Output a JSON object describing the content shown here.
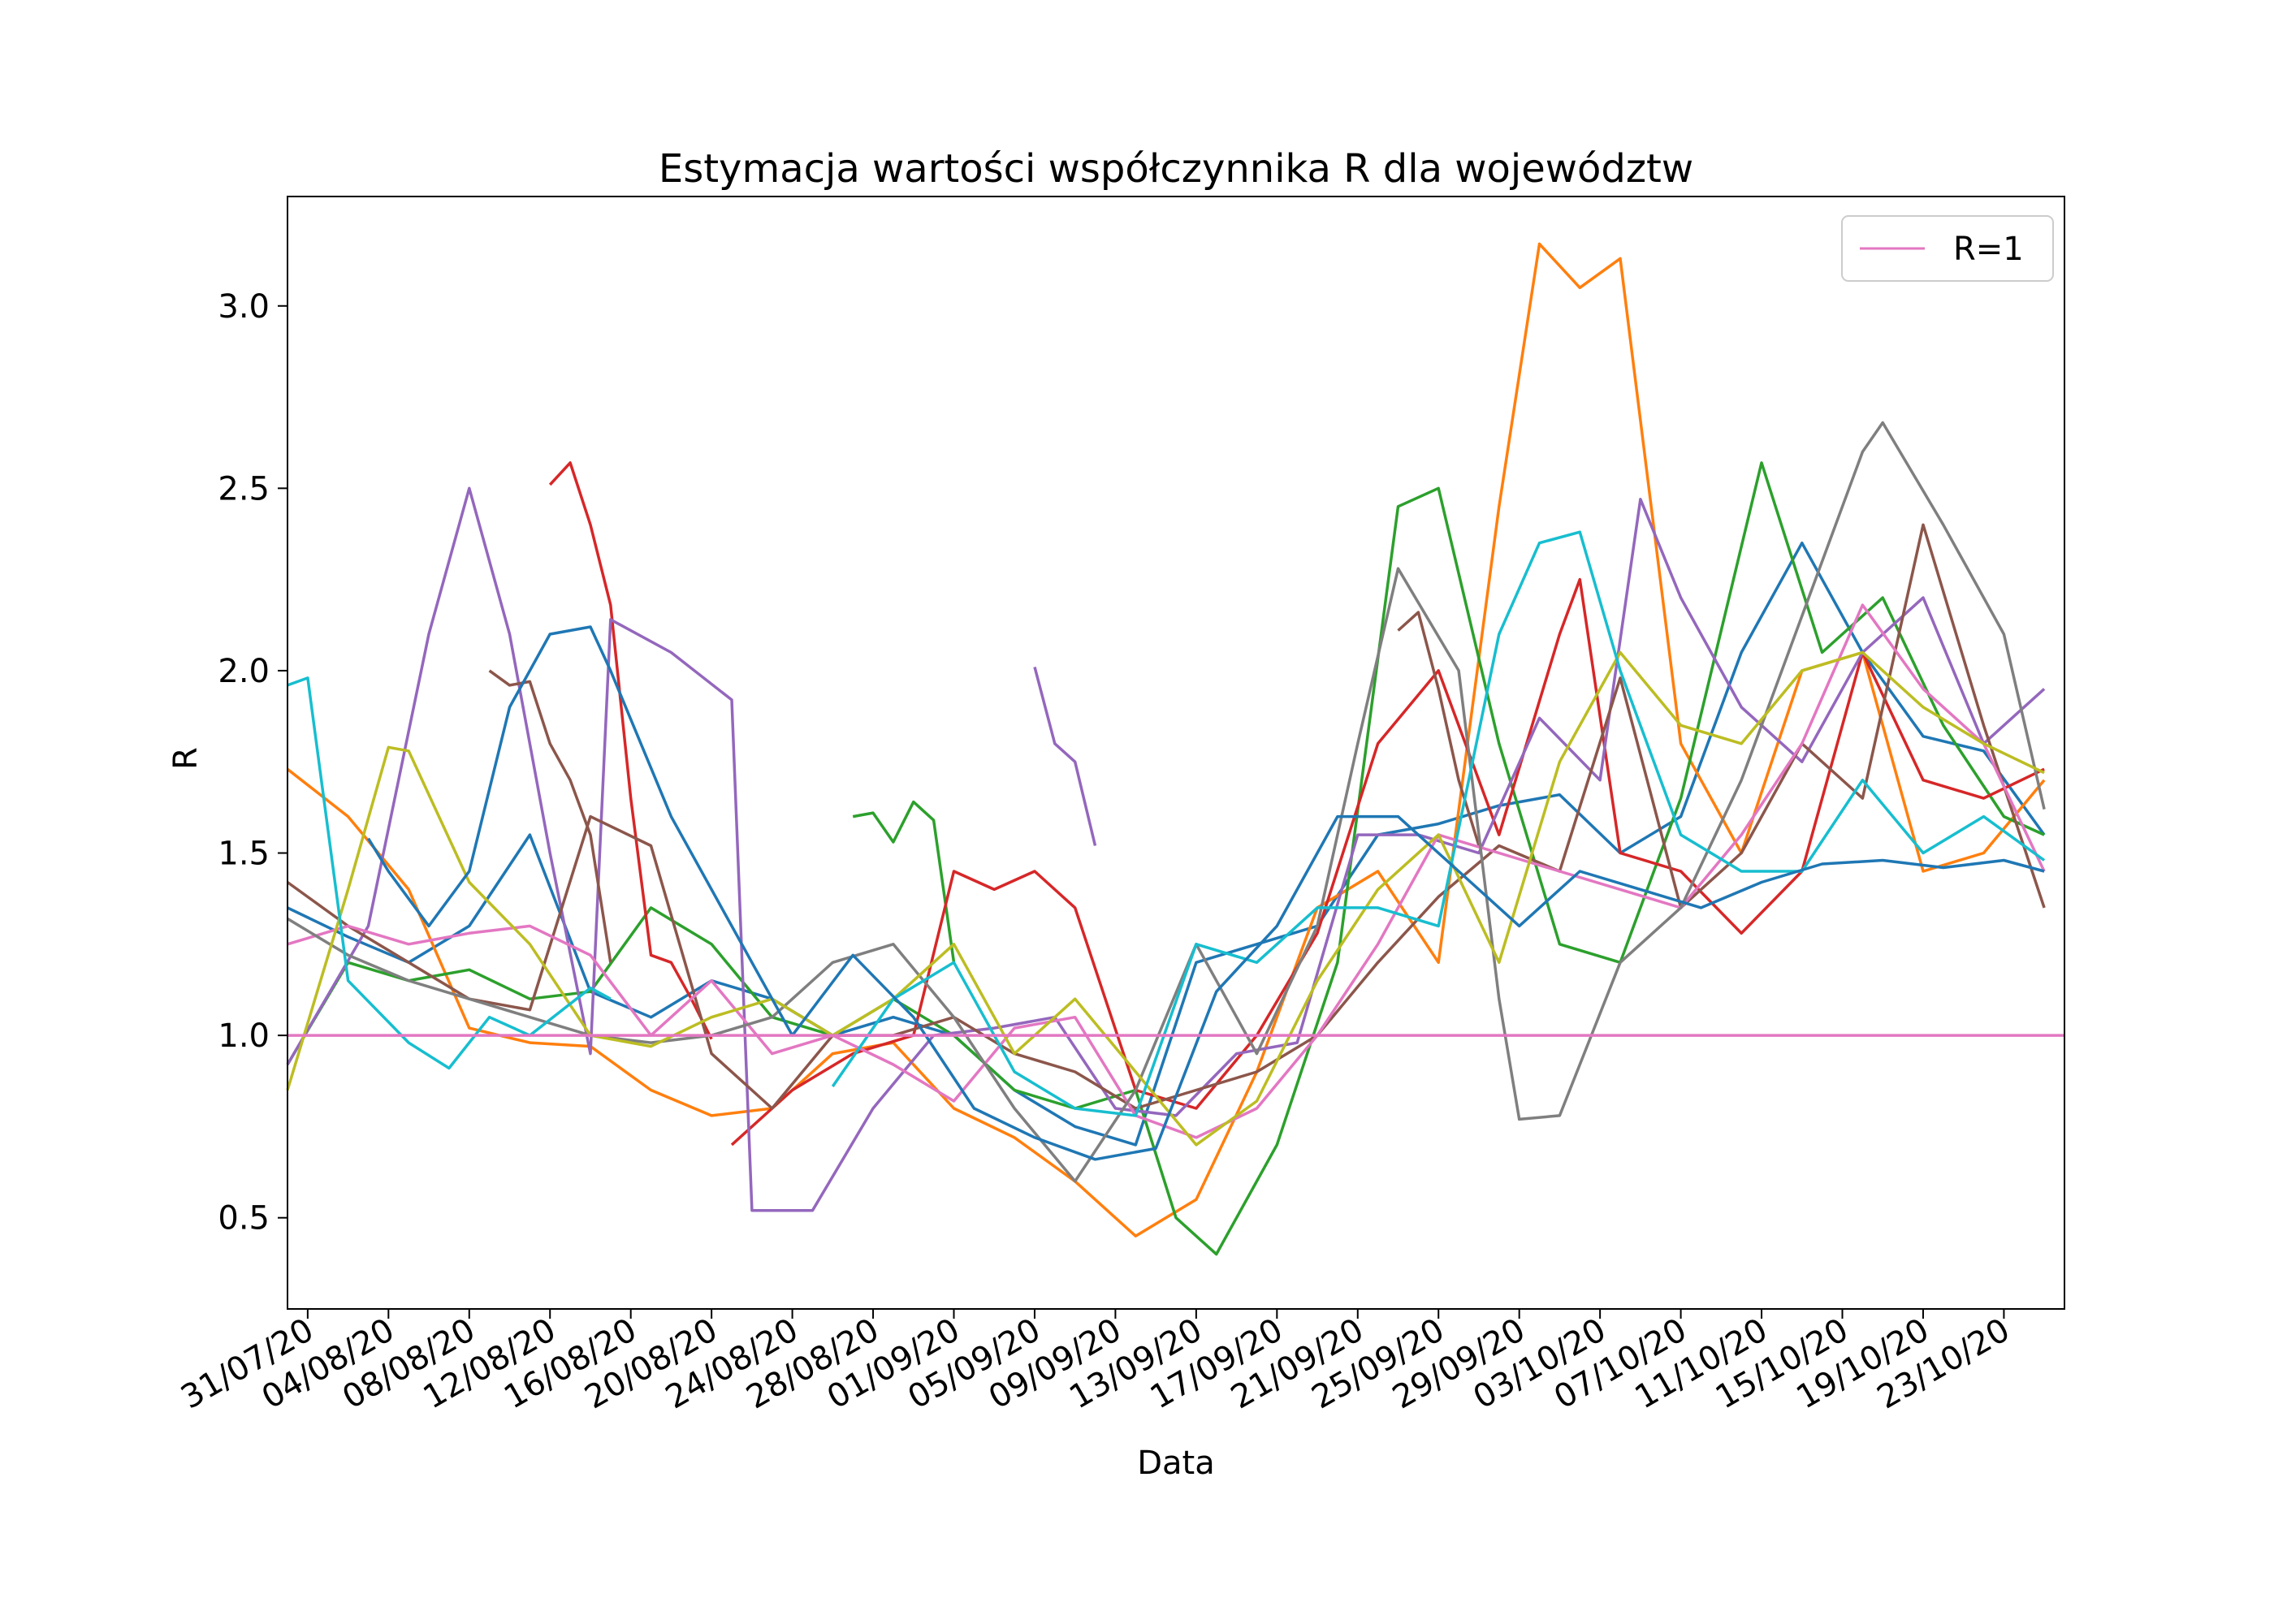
{
  "chart_data": {
    "type": "line",
    "title": "Estymacja wartości współczynnika R dla województw",
    "xlabel": "Data",
    "ylabel": "R",
    "x_axis": "date",
    "xlim": [
      "2020-07-30",
      "2020-10-26"
    ],
    "ylim": [
      0.25,
      3.3
    ],
    "x_ticks": [
      "31/07/20",
      "04/08/20",
      "08/08/20",
      "12/08/20",
      "16/08/20",
      "20/08/20",
      "24/08/20",
      "28/08/20",
      "01/09/20",
      "05/09/20",
      "09/09/20",
      "13/09/20",
      "17/09/20",
      "21/09/20",
      "25/09/20",
      "29/09/20",
      "03/10/20",
      "07/10/20",
      "11/10/20",
      "15/10/20",
      "19/10/20",
      "23/10/20"
    ],
    "y_ticks": [
      "0.5",
      "1.0",
      "1.5",
      "2.0",
      "2.5",
      "3.0"
    ],
    "grid": false,
    "legend": {
      "placement": "top-right",
      "entries": [
        "R=1"
      ]
    },
    "reference_line": {
      "label": "R=1",
      "y": 1.0,
      "color": "#e377c2"
    },
    "series": [
      {
        "color": "#1f77b4",
        "x": [
          "2020-07-30",
          "2020-08-02",
          "2020-08-05",
          "2020-08-08",
          "2020-08-11",
          "2020-08-14",
          "2020-08-17",
          "2020-08-20",
          "2020-08-23",
          "2020-08-26",
          "2020-08-29",
          "2020-09-01",
          "2020-09-04",
          "2020-09-07",
          "2020-09-10",
          "2020-09-13",
          "2020-09-16",
          "2020-09-19",
          "2020-09-22",
          "2020-09-25",
          "2020-09-28",
          "2020-10-01",
          "2020-10-04",
          "2020-10-07",
          "2020-10-10",
          "2020-10-13",
          "2020-10-16",
          "2020-10-19",
          "2020-10-22",
          "2020-10-25"
        ],
        "y": [
          1.35,
          1.27,
          1.2,
          1.3,
          1.55,
          1.12,
          1.05,
          1.15,
          1.1,
          1.0,
          1.05,
          1.0,
          0.85,
          0.75,
          0.7,
          1.2,
          1.25,
          1.3,
          1.55,
          1.58,
          1.63,
          1.66,
          1.5,
          1.6,
          2.05,
          2.35,
          2.05,
          1.82,
          1.78,
          1.55
        ]
      },
      {
        "color": "#ff7f0e",
        "x": [
          "2020-07-30",
          "2020-08-02",
          "2020-08-05",
          "2020-08-08",
          "2020-08-11",
          "2020-08-14",
          "2020-08-17",
          "2020-08-20",
          "2020-08-23",
          "2020-08-26",
          "2020-08-29",
          "2020-09-01",
          "2020-09-04",
          "2020-09-07",
          "2020-09-10",
          "2020-09-13",
          "2020-09-16",
          "2020-09-19",
          "2020-09-22",
          "2020-09-25",
          "2020-09-28",
          "2020-09-30",
          "2020-10-02",
          "2020-10-04",
          "2020-10-07",
          "2020-10-10",
          "2020-10-13",
          "2020-10-16",
          "2020-10-19",
          "2020-10-22",
          "2020-10-25"
        ],
        "y": [
          1.73,
          1.6,
          1.4,
          1.02,
          0.98,
          0.97,
          0.85,
          0.78,
          0.8,
          0.95,
          0.98,
          0.8,
          0.72,
          0.6,
          0.45,
          0.55,
          0.9,
          1.35,
          1.45,
          1.2,
          2.45,
          3.17,
          3.05,
          3.13,
          1.8,
          1.5,
          2.0,
          2.05,
          1.45,
          1.5,
          1.7
        ]
      },
      {
        "color": "#2ca02c",
        "x": [
          "2020-07-30",
          "2020-08-02",
          "2020-08-05",
          "2020-08-08",
          "2020-08-11",
          "2020-08-14",
          "2020-08-17",
          "2020-08-20",
          "2020-08-23",
          "2020-08-26",
          "2020-08-29",
          "2020-09-01",
          "2020-09-04",
          "2020-09-07",
          "2020-09-10",
          "2020-09-12",
          "2020-09-14",
          "2020-09-17",
          "2020-09-20",
          "2020-09-23",
          "2020-09-25",
          "2020-09-28",
          "2020-10-01",
          "2020-10-04",
          "2020-10-07",
          "2020-10-11",
          "2020-10-14",
          "2020-10-17",
          "2020-10-20",
          "2020-10-23",
          "2020-10-25"
        ],
        "y": [
          0.92,
          1.2,
          1.15,
          1.18,
          1.1,
          1.12,
          1.35,
          1.25,
          1.05,
          1.0,
          1.1,
          1.0,
          0.85,
          0.8,
          0.85,
          0.5,
          0.4,
          0.7,
          1.2,
          2.45,
          2.5,
          1.8,
          1.25,
          1.2,
          1.65,
          2.57,
          2.05,
          2.2,
          1.85,
          1.6,
          1.55
        ]
      },
      {
        "color": "#2ca02c",
        "x": [
          "2020-08-27",
          "2020-08-28",
          "2020-08-29",
          "2020-08-30",
          "2020-08-31",
          "2020-09-01"
        ],
        "y": [
          1.6,
          1.61,
          1.53,
          1.64,
          1.59,
          1.2
        ]
      },
      {
        "color": "#d62728",
        "x": [
          "2020-08-12",
          "2020-08-13",
          "2020-08-14",
          "2020-08-15",
          "2020-08-16",
          "2020-08-17",
          "2020-08-18",
          "2020-08-19",
          "2020-08-20"
        ],
        "y": [
          2.51,
          2.57,
          2.4,
          2.18,
          1.65,
          1.22,
          1.2,
          1.1,
          0.99
        ]
      },
      {
        "color": "#d62728",
        "x": [
          "2020-08-21",
          "2020-08-24",
          "2020-08-27",
          "2020-08-30",
          "2020-09-01",
          "2020-09-03",
          "2020-09-05",
          "2020-09-07",
          "2020-09-10",
          "2020-09-13",
          "2020-09-16",
          "2020-09-19",
          "2020-09-22",
          "2020-09-25",
          "2020-09-28",
          "2020-10-01",
          "2020-10-02",
          "2020-10-04",
          "2020-10-07",
          "2020-10-10",
          "2020-10-13",
          "2020-10-16",
          "2020-10-19",
          "2020-10-22",
          "2020-10-25"
        ],
        "y": [
          0.7,
          0.85,
          0.95,
          1.0,
          1.45,
          1.4,
          1.45,
          1.35,
          0.85,
          0.8,
          1.0,
          1.28,
          1.8,
          2.0,
          1.55,
          2.1,
          2.25,
          1.5,
          1.45,
          1.28,
          1.45,
          2.05,
          1.7,
          1.65,
          1.73
        ]
      },
      {
        "color": "#9467bd",
        "x": [
          "2020-07-30",
          "2020-08-03",
          "2020-08-06",
          "2020-08-08",
          "2020-08-10",
          "2020-08-12",
          "2020-08-14",
          "2020-08-15",
          "2020-08-18",
          "2020-08-21",
          "2020-08-22",
          "2020-08-25",
          "2020-08-28",
          "2020-08-31",
          "2020-09-03",
          "2020-09-06",
          "2020-09-09",
          "2020-09-12",
          "2020-09-15",
          "2020-09-18",
          "2020-09-21",
          "2020-09-24",
          "2020-09-27",
          "2020-09-30",
          "2020-10-03",
          "2020-10-05",
          "2020-10-07",
          "2020-10-10",
          "2020-10-13",
          "2020-10-16",
          "2020-10-19",
          "2020-10-22",
          "2020-10-25"
        ],
        "y": [
          0.92,
          1.3,
          2.1,
          2.5,
          2.1,
          1.5,
          0.95,
          2.14,
          2.05,
          1.92,
          0.52,
          0.52,
          0.8,
          1.0,
          1.02,
          1.05,
          0.8,
          0.78,
          0.95,
          0.98,
          1.55,
          1.55,
          1.5,
          1.87,
          1.7,
          2.47,
          2.2,
          1.9,
          1.75,
          2.05,
          2.2,
          1.8,
          1.95
        ]
      },
      {
        "color": "#9467bd",
        "x": [
          "2020-09-05",
          "2020-09-06",
          "2020-09-07",
          "2020-09-08"
        ],
        "y": [
          2.01,
          1.8,
          1.75,
          1.52
        ]
      },
      {
        "color": "#8c564b",
        "x": [
          "2020-07-30",
          "2020-08-02",
          "2020-08-05",
          "2020-08-08",
          "2020-08-11",
          "2020-08-14",
          "2020-08-17",
          "2020-08-20",
          "2020-08-23",
          "2020-08-26",
          "2020-08-29",
          "2020-09-01",
          "2020-09-04",
          "2020-09-07",
          "2020-09-10",
          "2020-09-13",
          "2020-09-16",
          "2020-09-19",
          "2020-09-22",
          "2020-09-25",
          "2020-09-28",
          "2020-10-01",
          "2020-10-04",
          "2020-10-07",
          "2020-10-10",
          "2020-10-13",
          "2020-10-16",
          "2020-10-19",
          "2020-10-22",
          "2020-10-25"
        ],
        "y": [
          1.42,
          1.3,
          1.2,
          1.1,
          1.07,
          1.6,
          1.52,
          0.95,
          0.8,
          1.0,
          1.0,
          1.05,
          0.95,
          0.9,
          0.8,
          0.85,
          0.9,
          1.0,
          1.2,
          1.38,
          1.52,
          1.45,
          1.98,
          1.35,
          1.5,
          1.8,
          1.65,
          2.4,
          1.85,
          1.35
        ]
      },
      {
        "color": "#8c564b",
        "x": [
          "2020-08-09",
          "2020-08-10",
          "2020-08-11",
          "2020-08-12",
          "2020-08-13",
          "2020-08-14",
          "2020-08-15"
        ],
        "y": [
          2.0,
          1.96,
          1.97,
          1.8,
          1.7,
          1.55,
          1.2
        ]
      },
      {
        "color": "#8c564b",
        "x": [
          "2020-09-23",
          "2020-09-24",
          "2020-09-25",
          "2020-09-26",
          "2020-09-27"
        ],
        "y": [
          2.11,
          2.16,
          1.95,
          1.7,
          1.52
        ]
      },
      {
        "color": "#e377c2",
        "x": [
          "2020-07-30",
          "2020-08-02",
          "2020-08-05",
          "2020-08-08",
          "2020-08-11",
          "2020-08-14",
          "2020-08-17",
          "2020-08-20",
          "2020-08-23",
          "2020-08-26",
          "2020-08-29",
          "2020-09-01",
          "2020-09-04",
          "2020-09-07",
          "2020-09-10",
          "2020-09-13",
          "2020-09-16",
          "2020-09-19",
          "2020-09-22",
          "2020-09-25",
          "2020-09-28",
          "2020-10-01",
          "2020-10-04",
          "2020-10-07",
          "2020-10-10",
          "2020-10-13",
          "2020-10-16",
          "2020-10-19",
          "2020-10-22",
          "2020-10-25"
        ],
        "y": [
          1.25,
          1.3,
          1.25,
          1.28,
          1.3,
          1.22,
          1.0,
          1.15,
          0.95,
          1.0,
          0.92,
          0.82,
          1.02,
          1.05,
          0.78,
          0.72,
          0.8,
          1.0,
          1.25,
          1.55,
          1.5,
          1.45,
          1.4,
          1.35,
          1.55,
          1.8,
          2.18,
          1.95,
          1.8,
          1.45
        ]
      },
      {
        "color": "#7f7f7f",
        "x": [
          "2020-07-30",
          "2020-08-02",
          "2020-08-05",
          "2020-08-08",
          "2020-08-11",
          "2020-08-14",
          "2020-08-17",
          "2020-08-20",
          "2020-08-23",
          "2020-08-26",
          "2020-08-29",
          "2020-09-01",
          "2020-09-04",
          "2020-09-07",
          "2020-09-10",
          "2020-09-13",
          "2020-09-16",
          "2020-09-19",
          "2020-09-21",
          "2020-09-23",
          "2020-09-26",
          "2020-09-28",
          "2020-09-29",
          "2020-10-01",
          "2020-10-04",
          "2020-10-07",
          "2020-10-10",
          "2020-10-13",
          "2020-10-16",
          "2020-10-17",
          "2020-10-20",
          "2020-10-23",
          "2020-10-25"
        ],
        "y": [
          1.32,
          1.22,
          1.15,
          1.1,
          1.05,
          1.0,
          0.98,
          1.0,
          1.05,
          1.2,
          1.25,
          1.05,
          0.8,
          0.6,
          0.85,
          1.25,
          0.95,
          1.3,
          1.8,
          2.28,
          2.0,
          1.1,
          0.77,
          0.78,
          1.2,
          1.35,
          1.7,
          2.15,
          2.6,
          2.68,
          2.4,
          2.1,
          1.62
        ]
      },
      {
        "color": "#bcbd22",
        "x": [
          "2020-07-30",
          "2020-08-02",
          "2020-08-04",
          "2020-08-05",
          "2020-08-08",
          "2020-08-11",
          "2020-08-14",
          "2020-08-17",
          "2020-08-20",
          "2020-08-23",
          "2020-08-26",
          "2020-08-29",
          "2020-09-01",
          "2020-09-04",
          "2020-09-07",
          "2020-09-10",
          "2020-09-13",
          "2020-09-16",
          "2020-09-19",
          "2020-09-22",
          "2020-09-25",
          "2020-09-28",
          "2020-10-01",
          "2020-10-04",
          "2020-10-07",
          "2020-10-10",
          "2020-10-13",
          "2020-10-16",
          "2020-10-19",
          "2020-10-22",
          "2020-10-25"
        ],
        "y": [
          0.85,
          1.4,
          1.79,
          1.78,
          1.42,
          1.25,
          1.0,
          0.97,
          1.05,
          1.1,
          1.0,
          1.1,
          1.25,
          0.95,
          1.1,
          0.9,
          0.7,
          0.82,
          1.15,
          1.4,
          1.55,
          1.2,
          1.75,
          2.05,
          1.85,
          1.8,
          2.0,
          2.05,
          1.9,
          1.8,
          1.72
        ]
      },
      {
        "color": "#17becf",
        "x": [
          "2020-07-30",
          "2020-07-31",
          "2020-08-02",
          "2020-08-05",
          "2020-08-07",
          "2020-08-09",
          "2020-08-11",
          "2020-08-14",
          "2020-08-15"
        ],
        "y": [
          1.96,
          1.98,
          1.15,
          0.98,
          0.91,
          1.05,
          1.0,
          1.13,
          1.1
        ]
      },
      {
        "color": "#17becf",
        "x": [
          "2020-08-26",
          "2020-08-29",
          "2020-09-01",
          "2020-09-04",
          "2020-09-07",
          "2020-09-10",
          "2020-09-13",
          "2020-09-16",
          "2020-09-19",
          "2020-09-22",
          "2020-09-25",
          "2020-09-28",
          "2020-09-30",
          "2020-10-02",
          "2020-10-04",
          "2020-10-07",
          "2020-10-10",
          "2020-10-13",
          "2020-10-16",
          "2020-10-19",
          "2020-10-22",
          "2020-10-25"
        ],
        "y": [
          0.86,
          1.1,
          1.2,
          0.9,
          0.8,
          0.78,
          1.25,
          1.2,
          1.35,
          1.35,
          1.3,
          2.1,
          2.35,
          2.38,
          2.0,
          1.55,
          1.45,
          1.45,
          1.7,
          1.5,
          1.6,
          1.48
        ]
      },
      {
        "color": "#1f77b4",
        "x": [
          "2020-08-03",
          "2020-08-04",
          "2020-08-06",
          "2020-08-08",
          "2020-08-10",
          "2020-08-12",
          "2020-08-14",
          "2020-08-15",
          "2020-08-18",
          "2020-08-21",
          "2020-08-24",
          "2020-08-27",
          "2020-08-30",
          "2020-09-02",
          "2020-09-05",
          "2020-09-08",
          "2020-09-11",
          "2020-09-14",
          "2020-09-17",
          "2020-09-20",
          "2020-09-23",
          "2020-09-26",
          "2020-09-29",
          "2020-10-02",
          "2020-10-05",
          "2020-10-08",
          "2020-10-11",
          "2020-10-14",
          "2020-10-17",
          "2020-10-20",
          "2020-10-23",
          "2020-10-25"
        ],
        "y": [
          1.54,
          1.45,
          1.3,
          1.45,
          1.9,
          2.1,
          2.12,
          2.0,
          1.6,
          1.3,
          1.0,
          1.22,
          1.05,
          0.8,
          0.72,
          0.66,
          0.69,
          1.12,
          1.3,
          1.6,
          1.6,
          1.45,
          1.3,
          1.45,
          1.4,
          1.35,
          1.42,
          1.47,
          1.48,
          1.46,
          1.48,
          1.45
        ]
      }
    ]
  }
}
